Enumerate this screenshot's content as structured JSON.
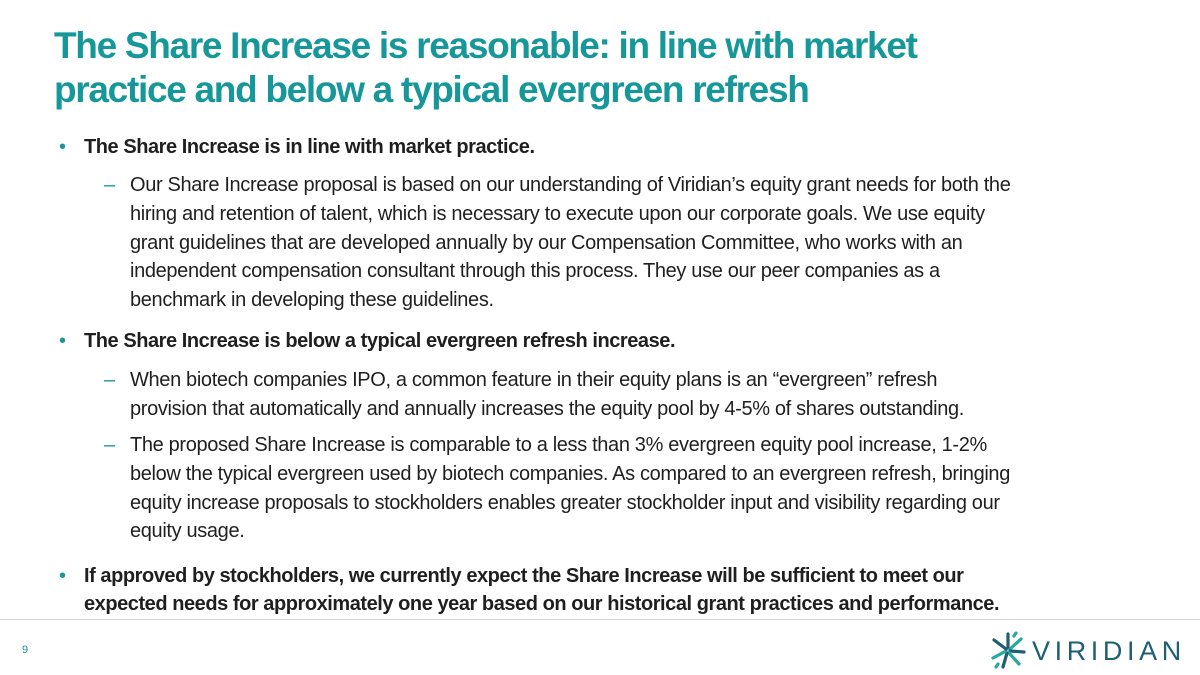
{
  "slide": {
    "title_lines": [
      "The Share Increase is reasonable: in line with market",
      "practice and below a typical evergreen refresh"
    ],
    "bullets": [
      {
        "marker": "•",
        "lines": [
          "The Share Increase is in line with market practice."
        ],
        "subs": [
          {
            "marker": "–",
            "lines": [
              "Our Share Increase proposal is based on our understanding of Viridian’s equity grant needs for both the",
              "hiring and retention of talent, which is necessary to execute upon our corporate goals. We use equity",
              "grant guidelines that are developed annually by our Compensation Committee, who works with an",
              "independent compensation consultant through this process. They use our peer companies as a",
              "benchmark in developing these guidelines."
            ]
          }
        ]
      },
      {
        "marker": "•",
        "lines": [
          "The Share Increase is below a typical evergreen refresh increase."
        ],
        "subs": [
          {
            "marker": "–",
            "lines": [
              "When biotech companies IPO, a common feature in their equity plans is an “evergreen” refresh",
              "provision that automatically and annually increases the equity pool by 4-5% of shares outstanding."
            ]
          },
          {
            "marker": "–",
            "lines": [
              "The proposed Share Increase is comparable to a less than 3% evergreen equity pool increase, 1-2%",
              "below the typical evergreen used by biotech companies. As compared to an evergreen refresh, bringing",
              "equity increase proposals to stockholders enables greater stockholder input and visibility regarding our",
              "equity usage."
            ]
          }
        ]
      },
      {
        "marker": "•",
        "lines": [
          "If approved by stockholders, we currently expect the Share Increase will be sufficient to meet our",
          "expected needs for approximately one year based on our historical grant practices and performance."
        ],
        "subs": []
      }
    ]
  },
  "footer": {
    "page_number": "9",
    "logo_text": "VIRIDIAN",
    "logo_icon": "viridian-star-icon"
  },
  "colors": {
    "accent": "#16979a",
    "logo_text": "#1f5f73",
    "body_text": "#1f1f1f"
  }
}
